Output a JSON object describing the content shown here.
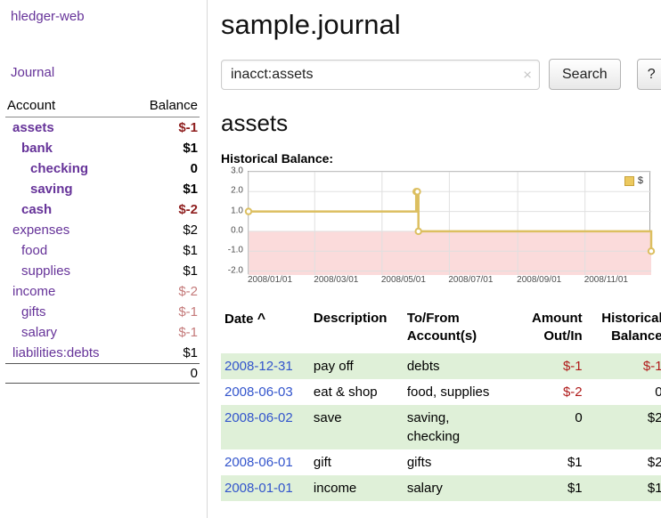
{
  "app": {
    "title": "hledger-web"
  },
  "sidebar": {
    "journal_label": "Journal",
    "headers": {
      "account": "Account",
      "balance": "Balance"
    },
    "accounts": [
      {
        "name": "assets",
        "balance": "$-1"
      },
      {
        "name": "bank",
        "balance": "$1"
      },
      {
        "name": "checking",
        "balance": "0"
      },
      {
        "name": "saving",
        "balance": "$1"
      },
      {
        "name": "cash",
        "balance": "$-2"
      },
      {
        "name": "expenses",
        "balance": "$2"
      },
      {
        "name": "food",
        "balance": "$1"
      },
      {
        "name": "supplies",
        "balance": "$1"
      },
      {
        "name": "income",
        "balance": "$-2"
      },
      {
        "name": "gifts",
        "balance": "$-1"
      },
      {
        "name": "salary",
        "balance": "$-1"
      },
      {
        "name": "liabilities:debts",
        "balance": "$1"
      }
    ],
    "total": "0"
  },
  "main": {
    "title": "sample.journal",
    "search": {
      "value": "inacct:assets",
      "clear_icon": "×",
      "button_label": "Search",
      "help_label": "?"
    },
    "account_heading": "assets",
    "chart_label": "Historical Balance:"
  },
  "chart_data": {
    "type": "line",
    "mode": "step",
    "title": "Historical Balance",
    "legend": {
      "label": "$",
      "position": "top-right"
    },
    "xlim": [
      "2008-01-01",
      "2008-12-31"
    ],
    "ylim": [
      -2.2,
      3.0
    ],
    "yticks": [
      3.0,
      2.0,
      1.0,
      0.0,
      -1.0,
      -2.0
    ],
    "xticks": [
      {
        "date": "2008-01-01",
        "label": "2008/01/01"
      },
      {
        "date": "2008-03-01",
        "label": "2008/03/01"
      },
      {
        "date": "2008-05-01",
        "label": "2008/05/01"
      },
      {
        "date": "2008-07-01",
        "label": "2008/07/01"
      },
      {
        "date": "2008-09-01",
        "label": "2008/09/01"
      },
      {
        "date": "2008-11-01",
        "label": "2008/11/01"
      }
    ],
    "series": [
      {
        "name": "$",
        "color": "#dcbf60",
        "marker_fill": "#ffffff",
        "points": [
          {
            "date": "2008-01-01",
            "value": 1
          },
          {
            "date": "2008-06-01",
            "value": 2
          },
          {
            "date": "2008-06-02",
            "value": 2
          },
          {
            "date": "2008-06-03",
            "value": 0
          },
          {
            "date": "2008-12-31",
            "value": -1
          }
        ]
      }
    ],
    "negative_region_fill": "#fbdbdb",
    "grid_color": "#e0e0e0"
  },
  "register": {
    "headers": {
      "date": "Date",
      "sort_icon": "^",
      "description": "Description",
      "account": "To/From Account(s)",
      "amount": "Amount Out/In",
      "balance": "Historical Balance"
    },
    "rows": [
      {
        "date": "2008-12-31",
        "description": "pay off",
        "account": "debts",
        "amount": "$-1",
        "balance": "$-1"
      },
      {
        "date": "2008-06-03",
        "description": "eat & shop",
        "account": "food, supplies",
        "amount": "$-2",
        "balance": "0"
      },
      {
        "date": "2008-06-02",
        "description": "save",
        "account": "saving,\nchecking",
        "amount": "0",
        "balance": "$2"
      },
      {
        "date": "2008-06-01",
        "description": "gift",
        "account": "gifts",
        "amount": "$1",
        "balance": "$2"
      },
      {
        "date": "2008-01-01",
        "description": "income",
        "account": "salary",
        "amount": "$1",
        "balance": "$1"
      }
    ]
  },
  "colors": {
    "link_purple": "#663399",
    "date_link_blue": "#3355cc",
    "negative_strong": "#8f1f1f",
    "negative_soft": "#c47a7a",
    "negative_red": "#b01b1b",
    "row_stripe_green": "#dff0d8"
  }
}
